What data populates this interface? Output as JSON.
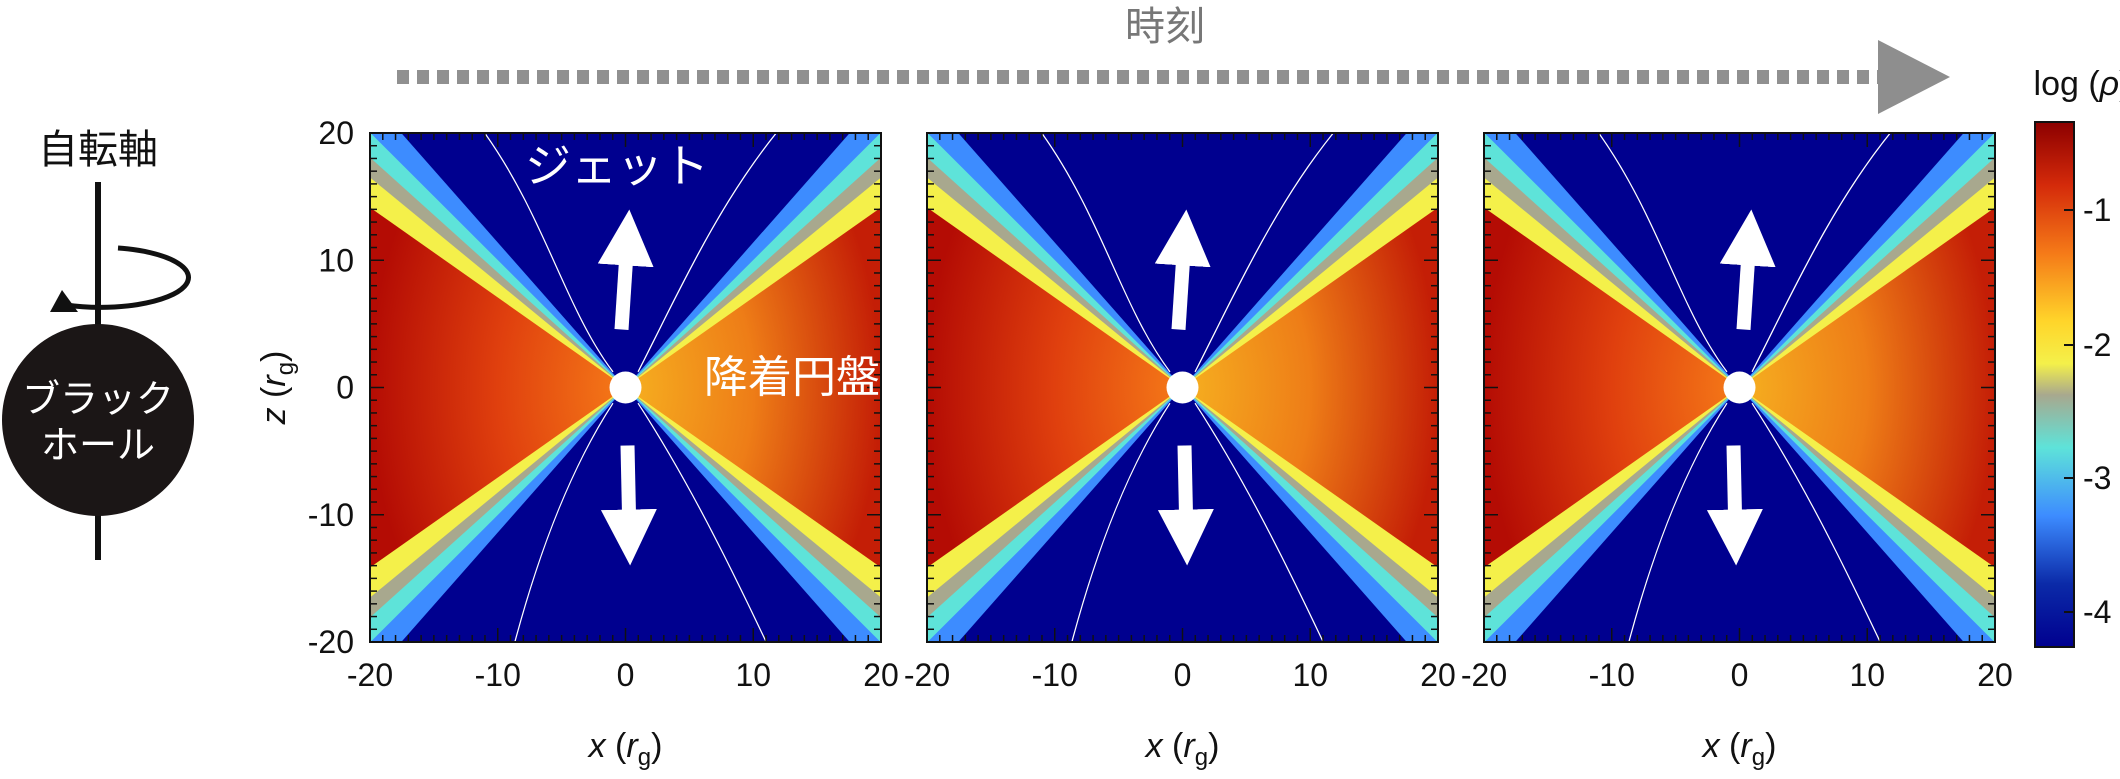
{
  "time_label": "時刻",
  "rotation_axis_label": "自転軸",
  "black_hole_label": {
    "line1": "ブラック",
    "line2": "ホール"
  },
  "jet_label": "ジェット",
  "disk_label": "降着円盤",
  "colorbar": {
    "title": "log (ρ)",
    "ticks": [
      "-1",
      "-2",
      "-3",
      "-4"
    ],
    "colors": [
      "#8c0000",
      "#d42a0a",
      "#f57a18",
      "#ffd52a",
      "#f4f04a",
      "#a8a88e",
      "#5ee3d9",
      "#3d8cff",
      "#0b2aa8",
      "#00008f"
    ]
  },
  "axes": {
    "x_ticks": [
      "-20",
      "-10",
      "0",
      "10",
      "20"
    ],
    "z_ticks": [
      "20",
      "10",
      "0",
      "-10",
      "-20"
    ],
    "x_label": {
      "var": "x",
      "open": " (",
      "sym": "r",
      "sub": "g",
      "close": ")"
    },
    "z_label": {
      "var": "z",
      "open": " (",
      "sym": "r",
      "sub": "g",
      "close": ")"
    }
  },
  "panels": [
    {
      "name": "panel-1"
    },
    {
      "name": "panel-2"
    },
    {
      "name": "panel-3"
    }
  ]
}
